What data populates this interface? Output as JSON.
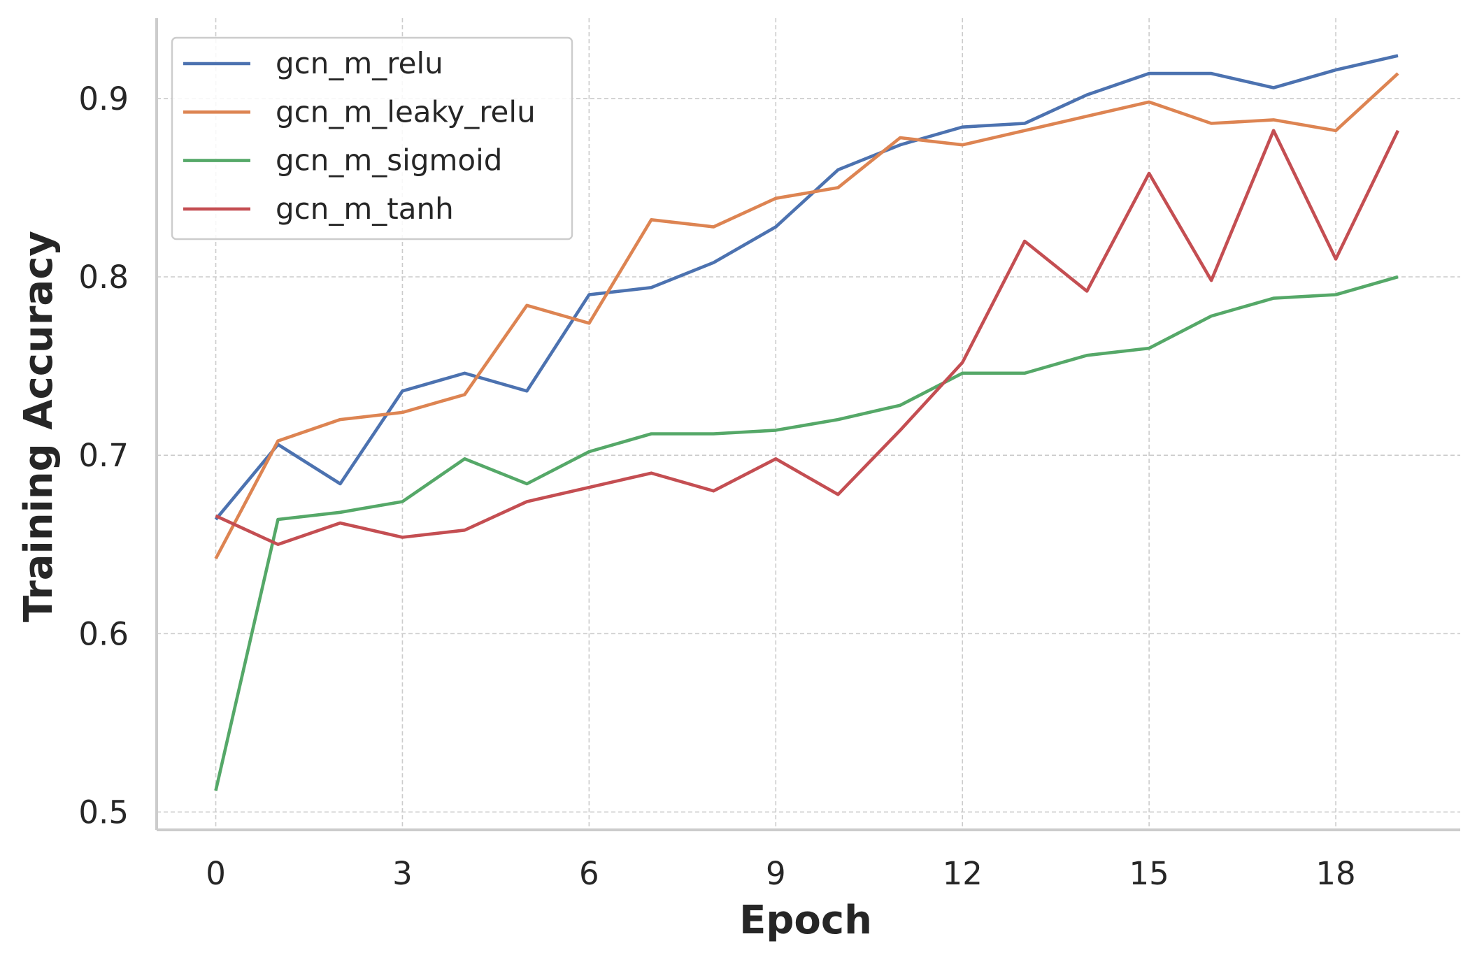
{
  "chart_data": {
    "type": "line",
    "title": "",
    "xlabel": "Epoch",
    "ylabel": "Training Accuracy",
    "x": [
      0,
      1,
      2,
      3,
      4,
      5,
      6,
      7,
      8,
      9,
      10,
      11,
      12,
      13,
      14,
      15,
      16,
      17,
      18,
      19
    ],
    "xticks": [
      0,
      3,
      6,
      9,
      12,
      15,
      18
    ],
    "xtick_labels": [
      "0",
      "3",
      "6",
      "9",
      "12",
      "15",
      "18"
    ],
    "yticks": [
      0.5,
      0.6,
      0.7,
      0.8,
      0.9
    ],
    "ytick_labels": [
      "0.5",
      "0.6",
      "0.7",
      "0.8",
      "0.9"
    ],
    "xlim": [
      -0.95,
      20.0
    ],
    "ylim": [
      0.49,
      0.945
    ],
    "grid": true,
    "legend_position": "top-left",
    "series": [
      {
        "name": "gcn_m_relu",
        "color": "#4c72b0",
        "values": [
          0.664,
          0.706,
          0.684,
          0.736,
          0.746,
          0.736,
          0.79,
          0.794,
          0.808,
          0.828,
          0.86,
          0.874,
          0.884,
          0.886,
          0.902,
          0.914,
          0.914,
          0.906,
          0.916,
          0.924
        ]
      },
      {
        "name": "gcn_m_leaky_relu",
        "color": "#dd8452",
        "values": [
          0.642,
          0.708,
          0.72,
          0.724,
          0.734,
          0.784,
          0.774,
          0.832,
          0.828,
          0.844,
          0.85,
          0.878,
          0.874,
          0.882,
          0.89,
          0.898,
          0.886,
          0.888,
          0.882,
          0.914
        ]
      },
      {
        "name": "gcn_m_sigmoid",
        "color": "#55a868",
        "values": [
          0.512,
          0.664,
          0.668,
          0.674,
          0.698,
          0.684,
          0.702,
          0.712,
          0.712,
          0.714,
          0.72,
          0.728,
          0.746,
          0.746,
          0.756,
          0.76,
          0.778,
          0.788,
          0.79,
          0.8
        ]
      },
      {
        "name": "gcn_m_tanh",
        "color": "#c44e52",
        "values": [
          0.666,
          0.65,
          0.662,
          0.654,
          0.658,
          0.674,
          0.682,
          0.69,
          0.68,
          0.698,
          0.678,
          0.714,
          0.752,
          0.82,
          0.792,
          0.858,
          0.798,
          0.882,
          0.81,
          0.882
        ]
      }
    ]
  }
}
